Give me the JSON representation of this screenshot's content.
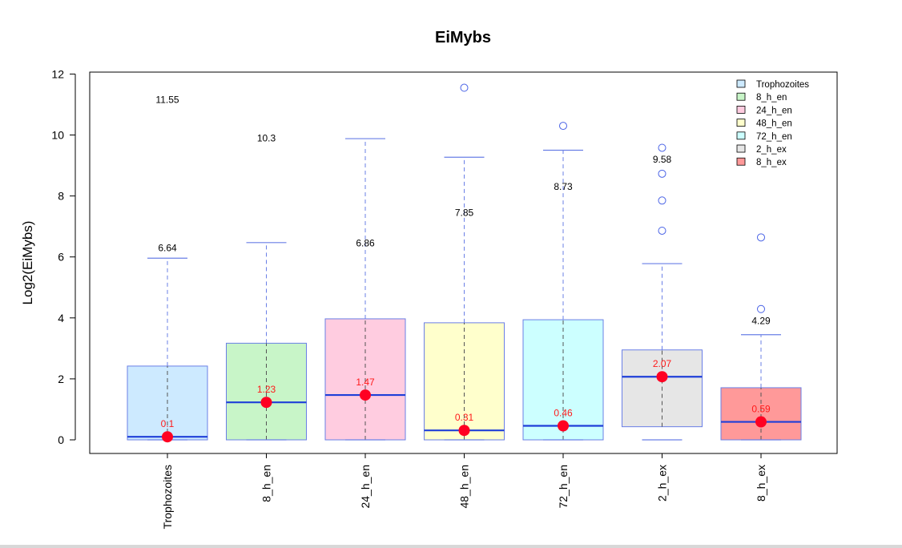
{
  "chart_data": {
    "type": "box",
    "title": "EiMybs",
    "xlabel": "",
    "ylabel": "Log2(EiMybs)",
    "ylim": [
      0,
      12
    ],
    "y_ticks": [
      0,
      2,
      4,
      6,
      8,
      10,
      12
    ],
    "grid": false,
    "legend_position": "top-right",
    "categories": [
      "Trophozoites",
      "8_h_en",
      "24_h_en",
      "48_h_en",
      "72_h_en",
      "2_h_ex",
      "8_h_ex"
    ],
    "colors": [
      "#cdeaff",
      "#c8f5c8",
      "#ffcce0",
      "#ffffcc",
      "#ccffff",
      "#e6e6e6",
      "#ff9999"
    ],
    "boxes": [
      {
        "min": 0,
        "q1": 0,
        "median": 0.1,
        "q3": 2.42,
        "whisker_high": 5.96,
        "outliers": [],
        "median_label": "0.1",
        "top_label": "6.64",
        "top_label_y": 6.3
      },
      {
        "min": 0,
        "q1": 0,
        "median": 1.23,
        "q3": 3.17,
        "whisker_high": 6.47,
        "outliers": [],
        "median_label": "1.23",
        "top_label": "10.3",
        "top_label_y": 9.9
      },
      {
        "min": 0,
        "q1": 0,
        "median": 1.47,
        "q3": 3.97,
        "whisker_high": 9.88,
        "outliers": [],
        "median_label": "1.47",
        "top_label": "6.86",
        "top_label_y": 6.45
      },
      {
        "min": 0,
        "q1": 0,
        "median": 0.31,
        "q3": 3.84,
        "whisker_high": 9.27,
        "outliers": [
          11.55
        ],
        "median_label": "0.31",
        "top_label": "7.85",
        "top_label_y": 7.45
      },
      {
        "min": 0,
        "q1": 0,
        "median": 0.46,
        "q3": 3.94,
        "whisker_high": 9.5,
        "outliers": [
          10.3
        ],
        "median_label": "0.46",
        "top_label": "8.73",
        "top_label_y": 8.3
      },
      {
        "min": 0,
        "q1": 0.43,
        "median": 2.07,
        "q3": 2.95,
        "whisker_high": 5.78,
        "outliers": [
          6.86,
          7.85,
          8.73,
          9.58
        ],
        "median_label": "2.07",
        "top_label": "9.58",
        "top_label_y": 9.2
      },
      {
        "min": 0,
        "q1": 0,
        "median": 0.59,
        "q3": 1.71,
        "whisker_high": 3.45,
        "outliers": [
          4.29,
          6.64
        ],
        "median_label": "0.59",
        "top_label": "4.29",
        "top_label_y": 3.9
      }
    ],
    "extra_annotations": [
      {
        "text": "11.55",
        "category_index": 0,
        "y": 11.15
      }
    ],
    "legend": [
      "Trophozoites",
      "8_h_en",
      "24_h_en",
      "48_h_en",
      "72_h_en",
      "2_h_ex",
      "8_h_ex"
    ]
  }
}
